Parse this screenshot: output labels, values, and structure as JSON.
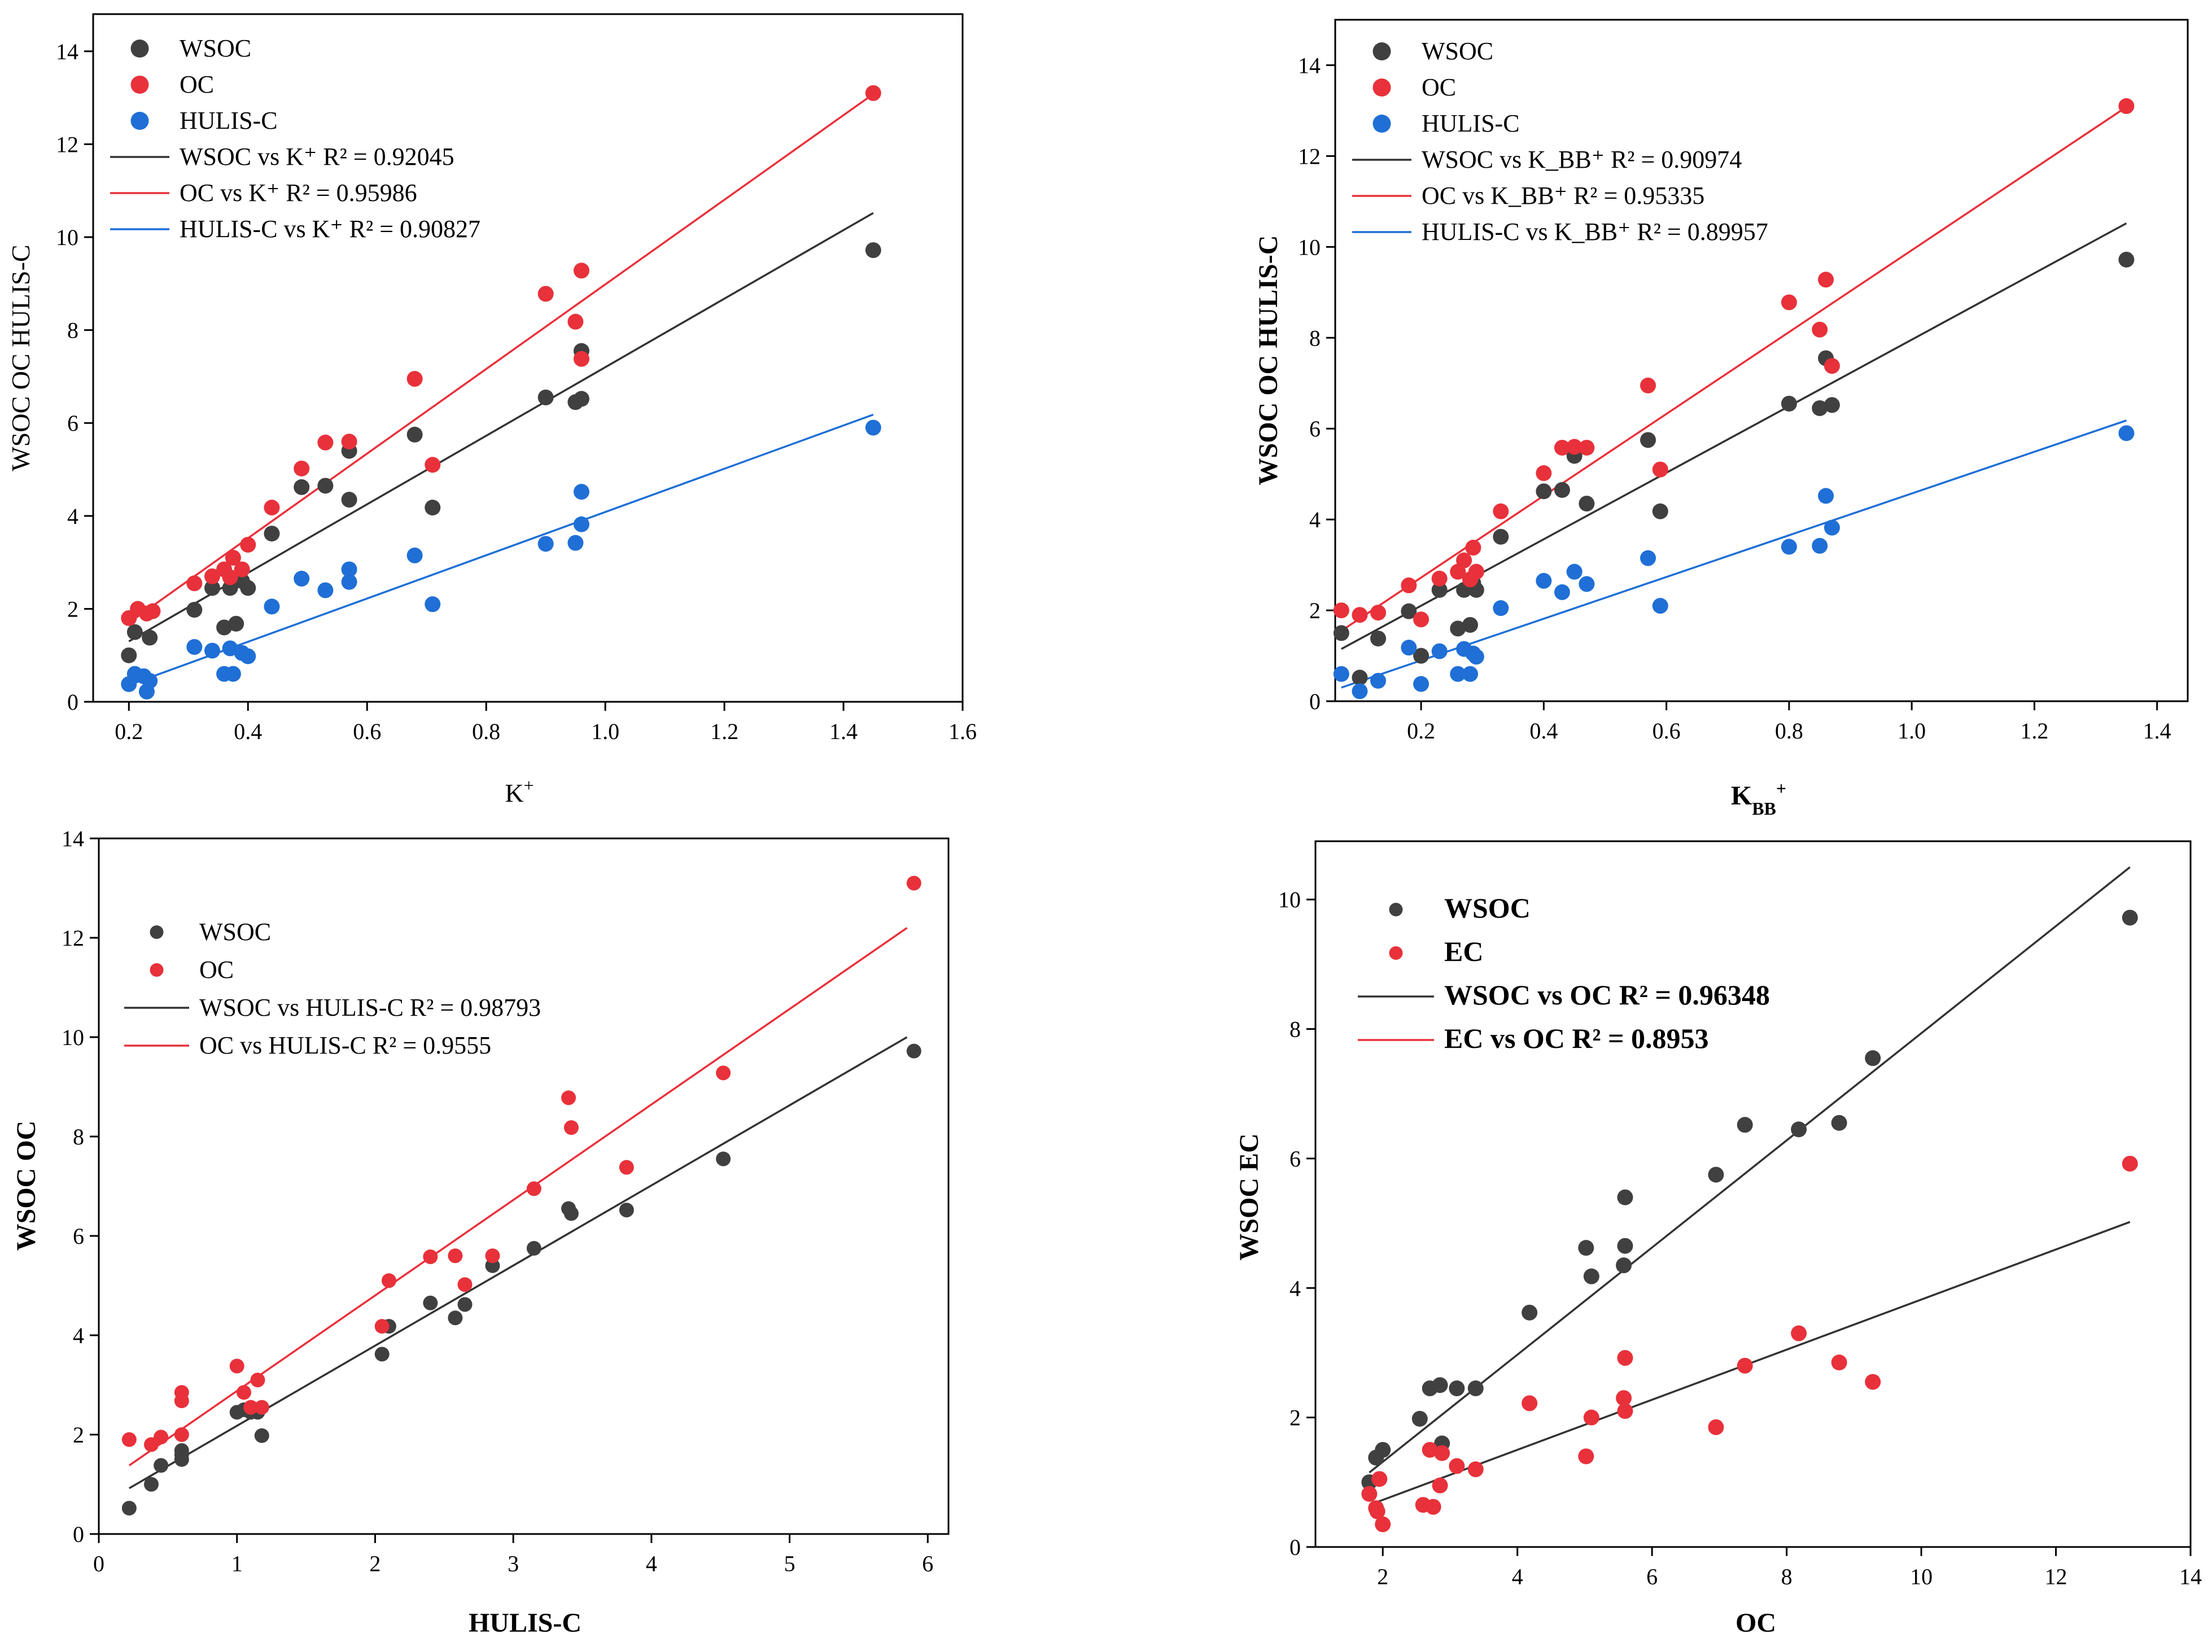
{
  "colors": {
    "wsoc": "#404040",
    "oc": "#e8313a",
    "hulis": "#1f6fd6",
    "ec": "#e8313a",
    "wsoc_fit": "#333333",
    "oc_fit": "#e8313a",
    "hulis_fit": "#1f6fd6"
  },
  "chart_data": [
    {
      "type": "scatter",
      "title": "",
      "xlabel": "K",
      "xlabel_sup": "+",
      "ylabel": "WSOC  OC  HULIS-C",
      "xlim": [
        0.14,
        1.6
      ],
      "ylim": [
        0,
        14.8
      ],
      "xticks": [
        "0.2",
        "0.4",
        "0.6",
        "0.8",
        "1.0",
        "1.2",
        "1.4",
        "1.6"
      ],
      "yticks": [
        "0",
        "2",
        "4",
        "6",
        "8",
        "10",
        "12",
        "14"
      ],
      "legend": [
        {
          "kind": "marker",
          "series": "wsoc",
          "label": "WSOC"
        },
        {
          "kind": "marker",
          "series": "oc",
          "label": "OC"
        },
        {
          "kind": "marker",
          "series": "hulis",
          "label": "HULIS-C"
        },
        {
          "kind": "line",
          "series": "wsoc_fit",
          "label": "WSOC vs K⁺  R² = 0.92045"
        },
        {
          "kind": "line",
          "series": "oc_fit",
          "label": "OC vs K⁺    R² = 0.95986"
        },
        {
          "kind": "line",
          "series": "hulis_fit",
          "label": "HULIS-C vs K⁺  R² = 0.90827"
        }
      ],
      "series": [
        {
          "name": "WSOC",
          "color": "wsoc",
          "x": [
            0.2,
            0.21,
            0.235,
            0.31,
            0.34,
            0.36,
            0.37,
            0.38,
            0.39,
            0.4,
            0.44,
            0.49,
            0.53,
            0.57,
            0.57,
            0.68,
            0.71,
            0.9,
            0.95,
            0.96,
            0.96,
            1.45
          ],
          "y": [
            1.0,
            1.5,
            1.38,
            1.98,
            2.45,
            1.6,
            2.45,
            1.68,
            2.6,
            2.45,
            3.62,
            4.62,
            4.65,
            5.4,
            4.35,
            5.75,
            4.18,
            6.55,
            6.45,
            6.52,
            7.55,
            9.72
          ]
        },
        {
          "name": "OC",
          "color": "oc",
          "x": [
            0.2,
            0.215,
            0.23,
            0.24,
            0.31,
            0.34,
            0.36,
            0.37,
            0.375,
            0.39,
            0.4,
            0.44,
            0.49,
            0.53,
            0.57,
            0.68,
            0.71,
            0.9,
            0.95,
            0.96,
            0.96,
            1.45
          ],
          "y": [
            1.8,
            2.0,
            1.9,
            1.95,
            2.55,
            2.7,
            2.85,
            2.68,
            3.1,
            2.85,
            3.38,
            4.18,
            5.02,
            5.58,
            5.6,
            6.95,
            5.1,
            8.78,
            8.18,
            9.28,
            7.38,
            13.1
          ]
        },
        {
          "name": "HULIS-C",
          "color": "hulis",
          "x": [
            0.2,
            0.21,
            0.225,
            0.23,
            0.235,
            0.31,
            0.34,
            0.36,
            0.37,
            0.375,
            0.39,
            0.4,
            0.44,
            0.49,
            0.53,
            0.57,
            0.57,
            0.68,
            0.71,
            0.9,
            0.95,
            0.96,
            0.96,
            1.45
          ],
          "y": [
            0.38,
            0.6,
            0.55,
            0.22,
            0.45,
            1.18,
            1.1,
            0.6,
            1.15,
            0.6,
            1.05,
            0.98,
            2.05,
            2.65,
            2.4,
            2.58,
            2.85,
            3.15,
            2.1,
            3.4,
            3.42,
            3.82,
            4.52,
            5.9
          ]
        }
      ],
      "fits": [
        {
          "color": "wsoc_fit",
          "x": [
            0.2,
            1.45
          ],
          "y": [
            1.3,
            10.52
          ]
        },
        {
          "color": "oc_fit",
          "x": [
            0.2,
            1.45
          ],
          "y": [
            1.7,
            13.08
          ]
        },
        {
          "color": "hulis_fit",
          "x": [
            0.2,
            1.45
          ],
          "y": [
            0.36,
            6.18
          ]
        }
      ]
    },
    {
      "type": "scatter",
      "title": "",
      "xlabel": "K",
      "xlabel_sub": "BB",
      "xlabel_sup": "+",
      "ylabel": "WSOC  OC  HULIS-C",
      "xlim": [
        0.06,
        1.45
      ],
      "ylim": [
        0,
        15.0
      ],
      "xticks": [
        "0.2",
        "0.4",
        "0.6",
        "0.8",
        "1.0",
        "1.2",
        "1.4"
      ],
      "yticks": [
        "0",
        "2",
        "4",
        "6",
        "8",
        "10",
        "12",
        "14"
      ],
      "legend": [
        {
          "kind": "marker",
          "series": "wsoc",
          "label": "WSOC"
        },
        {
          "kind": "marker",
          "series": "oc",
          "label": "OC"
        },
        {
          "kind": "marker",
          "series": "hulis",
          "label": "HULIS-C"
        },
        {
          "kind": "line",
          "series": "wsoc_fit",
          "label": "WSOC vs K_BB⁺  R² = 0.90974"
        },
        {
          "kind": "line",
          "series": "oc_fit",
          "label": "OC vs K_BB⁺    R² = 0.95335"
        },
        {
          "kind": "line",
          "series": "hulis_fit",
          "label": "HULIS-C vs K_BB⁺  R² = 0.89957"
        }
      ],
      "series": [
        {
          "name": "WSOC",
          "color": "wsoc",
          "x": [
            0.07,
            0.1,
            0.13,
            0.18,
            0.2,
            0.23,
            0.26,
            0.27,
            0.28,
            0.285,
            0.29,
            0.33,
            0.4,
            0.43,
            0.45,
            0.47,
            0.57,
            0.59,
            0.8,
            0.85,
            0.86,
            0.87,
            1.35
          ],
          "y": [
            1.5,
            0.52,
            1.38,
            1.98,
            1.0,
            2.45,
            1.6,
            2.45,
            1.68,
            2.6,
            2.45,
            3.62,
            4.62,
            4.65,
            5.4,
            4.35,
            5.75,
            4.18,
            6.55,
            6.45,
            7.55,
            6.52,
            9.72
          ]
        },
        {
          "name": "OC",
          "color": "oc",
          "x": [
            0.07,
            0.1,
            0.13,
            0.18,
            0.2,
            0.23,
            0.26,
            0.27,
            0.28,
            0.285,
            0.29,
            0.33,
            0.4,
            0.43,
            0.45,
            0.47,
            0.57,
            0.59,
            0.8,
            0.85,
            0.86,
            0.87,
            1.35
          ],
          "y": [
            2.0,
            1.9,
            1.95,
            2.55,
            1.8,
            2.7,
            2.85,
            3.1,
            2.68,
            3.38,
            2.85,
            4.18,
            5.02,
            5.58,
            5.6,
            5.58,
            6.95,
            5.1,
            8.78,
            8.18,
            9.28,
            7.38,
            13.1
          ]
        },
        {
          "name": "HULIS-C",
          "color": "hulis",
          "x": [
            0.07,
            0.1,
            0.13,
            0.18,
            0.2,
            0.23,
            0.26,
            0.27,
            0.28,
            0.285,
            0.29,
            0.33,
            0.4,
            0.43,
            0.45,
            0.47,
            0.57,
            0.59,
            0.8,
            0.85,
            0.86,
            0.87,
            1.35
          ],
          "y": [
            0.6,
            0.22,
            0.45,
            1.18,
            0.38,
            1.1,
            0.6,
            1.15,
            0.6,
            1.05,
            0.98,
            2.05,
            2.65,
            2.4,
            2.85,
            2.58,
            3.15,
            2.1,
            3.4,
            3.42,
            4.52,
            3.82,
            5.9
          ]
        }
      ],
      "fits": [
        {
          "color": "wsoc_fit",
          "x": [
            0.07,
            1.35
          ],
          "y": [
            1.15,
            10.52
          ]
        },
        {
          "color": "oc_fit",
          "x": [
            0.07,
            1.35
          ],
          "y": [
            1.55,
            13.08
          ]
        },
        {
          "color": "hulis_fit",
          "x": [
            0.07,
            1.35
          ],
          "y": [
            0.3,
            6.18
          ]
        }
      ]
    },
    {
      "type": "scatter",
      "title": "",
      "xlabel": "HULIS-C",
      "ylabel": "WSOC  OC",
      "xlim": [
        0,
        6.15
      ],
      "ylim": [
        0,
        14
      ],
      "xticks": [
        "0",
        "1",
        "2",
        "3",
        "4",
        "5",
        "6"
      ],
      "yticks": [
        "0",
        "2",
        "4",
        "6",
        "8",
        "10",
        "12",
        "14"
      ],
      "legend": [
        {
          "kind": "marker",
          "series": "wsoc",
          "label": "WSOC"
        },
        {
          "kind": "marker",
          "series": "oc",
          "label": "OC"
        },
        {
          "kind": "line",
          "series": "wsoc_fit",
          "label": "WSOC vs HULIS-C R² = 0.98793"
        },
        {
          "kind": "line",
          "series": "oc_fit",
          "label": "OC vs HULIS-C       R² = 0.9555"
        }
      ],
      "series": [
        {
          "name": "WSOC",
          "color": "wsoc",
          "x": [
            0.22,
            0.38,
            0.45,
            0.6,
            0.6,
            0.6,
            1.0,
            1.05,
            1.1,
            1.15,
            1.18,
            2.05,
            2.1,
            2.4,
            2.58,
            2.65,
            2.85,
            3.15,
            3.4,
            3.42,
            3.82,
            4.52,
            5.9
          ],
          "y": [
            0.52,
            1.0,
            1.38,
            1.5,
            1.6,
            1.68,
            2.45,
            2.5,
            2.45,
            2.45,
            1.98,
            3.62,
            4.18,
            4.65,
            4.35,
            4.62,
            5.4,
            5.75,
            6.55,
            6.45,
            6.52,
            7.55,
            9.72
          ]
        },
        {
          "name": "OC",
          "color": "oc",
          "x": [
            0.22,
            0.38,
            0.45,
            0.6,
            0.6,
            0.6,
            1.0,
            1.05,
            1.1,
            1.15,
            1.18,
            2.05,
            2.1,
            2.4,
            2.58,
            2.65,
            2.85,
            3.15,
            3.4,
            3.42,
            3.82,
            4.52,
            5.9
          ],
          "y": [
            1.9,
            1.8,
            1.95,
            2.0,
            2.68,
            2.85,
            3.38,
            2.85,
            2.55,
            3.1,
            2.55,
            4.18,
            5.1,
            5.58,
            5.6,
            5.02,
            5.6,
            6.95,
            8.78,
            8.18,
            7.38,
            9.28,
            13.1
          ]
        }
      ],
      "fits": [
        {
          "color": "wsoc_fit",
          "x": [
            0.22,
            5.85
          ],
          "y": [
            0.92,
            10.0
          ]
        },
        {
          "color": "oc_fit",
          "x": [
            0.22,
            5.85
          ],
          "y": [
            1.38,
            12.2
          ]
        }
      ]
    },
    {
      "type": "scatter",
      "title": "",
      "xlabel": "OC",
      "ylabel": "WSOC  EC",
      "xlim": [
        1.0,
        14
      ],
      "ylim": [
        0,
        10.9
      ],
      "xticks": [
        "2",
        "4",
        "6",
        "8",
        "10",
        "12",
        "14"
      ],
      "yticks": [
        "0",
        "2",
        "4",
        "6",
        "8",
        "10"
      ],
      "legend": [
        {
          "kind": "marker",
          "series": "wsoc",
          "label": "WSOC"
        },
        {
          "kind": "marker",
          "series": "ec",
          "label": "EC"
        },
        {
          "kind": "line",
          "series": "wsoc_fit",
          "label": "WSOC vs OC R² = 0.96348"
        },
        {
          "kind": "line",
          "series": "ec_fit",
          "label": "EC vs OC R² = 0.8953"
        }
      ],
      "series": [
        {
          "name": "WSOC",
          "color": "wsoc",
          "x": [
            1.8,
            1.9,
            2.0,
            2.55,
            2.7,
            2.85,
            2.88,
            3.1,
            3.38,
            4.18,
            5.02,
            5.1,
            5.58,
            5.6,
            5.6,
            6.95,
            7.38,
            8.18,
            8.78,
            9.28,
            13.1
          ],
          "y": [
            1.0,
            1.38,
            1.5,
            1.98,
            2.45,
            2.5,
            1.6,
            2.45,
            2.45,
            3.62,
            4.62,
            4.18,
            4.35,
            4.65,
            5.4,
            5.75,
            6.52,
            6.45,
            6.55,
            7.55,
            9.72
          ]
        },
        {
          "name": "EC",
          "color": "ec",
          "x": [
            1.8,
            1.9,
            1.92,
            1.95,
            2.0,
            2.6,
            2.7,
            2.75,
            2.85,
            2.88,
            3.1,
            3.38,
            4.18,
            5.02,
            5.1,
            5.58,
            5.6,
            5.6,
            6.95,
            7.38,
            8.18,
            8.78,
            9.28,
            13.1
          ],
          "y": [
            0.82,
            0.6,
            0.55,
            1.05,
            0.35,
            0.65,
            1.5,
            0.62,
            0.95,
            1.45,
            1.25,
            1.2,
            2.22,
            1.4,
            2.0,
            2.3,
            2.1,
            2.92,
            1.85,
            2.8,
            3.3,
            2.85,
            2.55,
            5.92
          ]
        }
      ],
      "fits": [
        {
          "color": "wsoc_fit",
          "x": [
            1.8,
            13.1
          ],
          "y": [
            1.15,
            10.5
          ]
        },
        {
          "color": "ec_fit",
          "x": [
            1.8,
            13.1
          ],
          "y": [
            0.65,
            5.02
          ]
        }
      ]
    }
  ]
}
